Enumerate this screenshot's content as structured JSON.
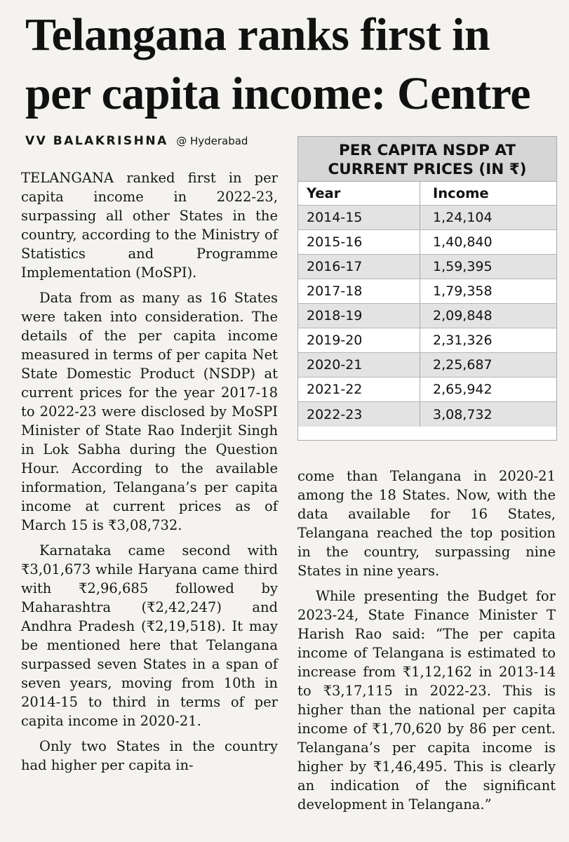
{
  "headline": "Telangana ranks first in per capita income: Centre",
  "byline": {
    "author": "VV BALAKRISHNA",
    "location": "@ Hyderabad"
  },
  "table": {
    "title_line1": "PER CAPITA NSDP AT",
    "title_line2": "CURRENT PRICES (IN ₹)",
    "headers": {
      "year": "Year",
      "income": "Income"
    },
    "rows": [
      {
        "year": "2014-15",
        "income": "1,24,104"
      },
      {
        "year": "2015-16",
        "income": "1,40,840"
      },
      {
        "year": "2016-17",
        "income": "1,59,395"
      },
      {
        "year": "2017-18",
        "income": "1,79,358"
      },
      {
        "year": "2018-19",
        "income": "2,09,848"
      },
      {
        "year": "2019-20",
        "income": "2,31,326"
      },
      {
        "year": "2020-21",
        "income": "2,25,687"
      },
      {
        "year": "2021-22",
        "income": "2,65,942"
      },
      {
        "year": "2022-23",
        "income": "3,08,732"
      }
    ]
  },
  "chart_data": {
    "type": "table",
    "title": "PER CAPITA NSDP AT CURRENT PRICES (IN ₹)",
    "columns": [
      "Year",
      "Income"
    ],
    "categories": [
      "2014-15",
      "2015-16",
      "2016-17",
      "2017-18",
      "2018-19",
      "2019-20",
      "2020-21",
      "2021-22",
      "2022-23"
    ],
    "values": [
      124104,
      140840,
      159395,
      179358,
      209848,
      231326,
      225687,
      265942,
      308732
    ]
  },
  "article": {
    "p1": "TELANGANA ranked first in per capita income in 2022-23, surpassing all other States in the country, according to the Ministry of Statistics and Programme Implementation (MoSPI).",
    "p2": "Data from as many as 16 States were taken into consideration. The details of the per capita income measured in terms of per capita Net State Domestic Product (NSDP) at current prices for the year 2017-18 to 2022-23 were disclosed by MoSPI Minister of State Rao Inderjit Singh in Lok Sabha during the Question Hour. According to the available information, Telangana’s per capita income at current prices as of March 15 is ₹3,08,732.",
    "p3": "Karnataka came second with ₹3,01,673 while Haryana came third with ₹2,96,685 followed by Maharashtra (₹2,42,247) and Andhra Pradesh (₹2,19,518). It may be mentioned here that Telangana surpassed seven States in a span of seven years, moving from 10th in 2014-15 to third in terms of per capita income in 2020-21.",
    "p4": "Only two States in the country had higher per capita in-",
    "p4_cont": "come than Telangana in 2020-21 among the 18 States. Now, with the data available for 16 States, Telangana reached the top position in the country, surpassing nine States in nine years.",
    "p5": "While presenting the Budget for 2023-24, State Finance Minister T Harish Rao said: “The per capita income of Telangana is estimated to increase from ₹1,12,162 in 2013-14 to ₹3,17,115 in 2022-23. This is higher than the national per capita income of ₹1,70,620 by 86 per cent. Telangana’s per capita income is higher by ₹1,46,495. This is clearly an indication of the significant development in Telangana.”"
  }
}
